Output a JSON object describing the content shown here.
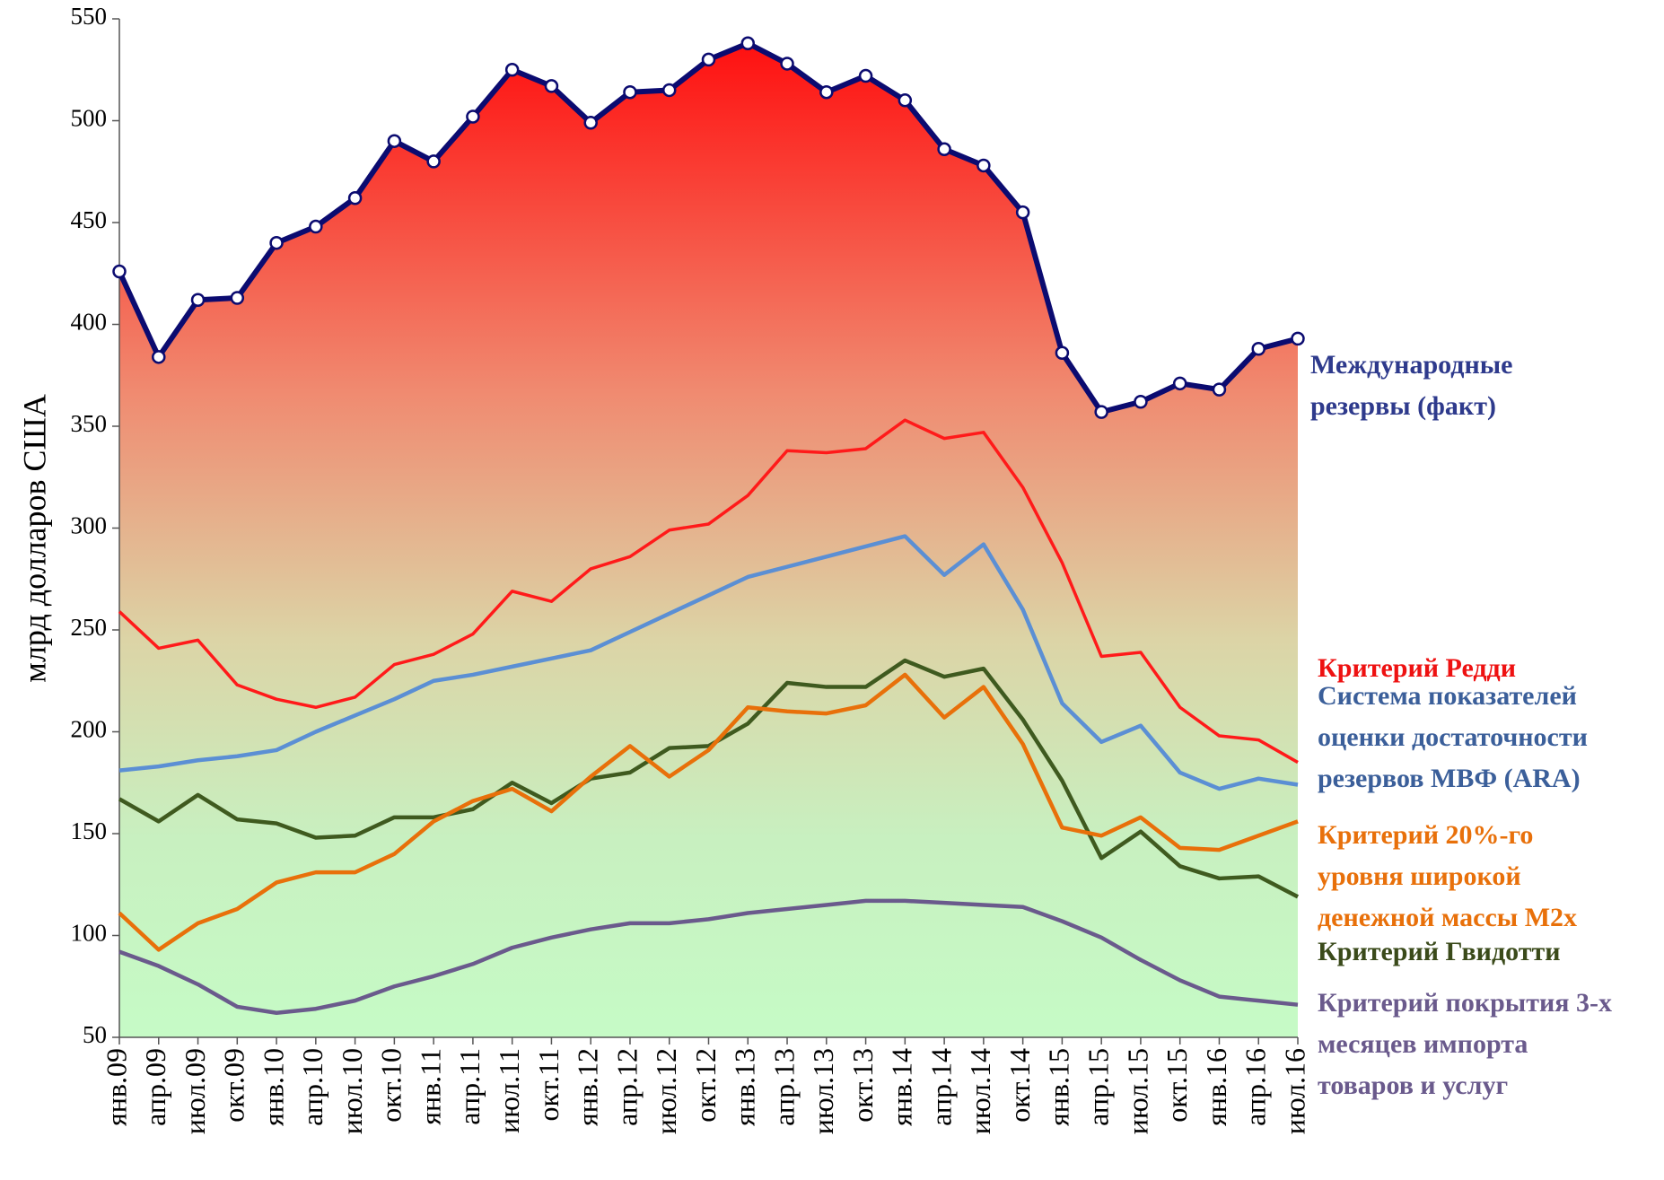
{
  "chart_data": {
    "type": "line",
    "ylabel": "млрд долларов США",
    "categories": [
      "янв.09",
      "апр.09",
      "июл.09",
      "окт.09",
      "янв.10",
      "апр.10",
      "июл.10",
      "окт.10",
      "янв.11",
      "апр.11",
      "июл.11",
      "окт.11",
      "янв.12",
      "апр.12",
      "июл.12",
      "окт.12",
      "янв.13",
      "апр.13",
      "июл.13",
      "окт.13",
      "янв.14",
      "апр.14",
      "июл.14",
      "окт.14",
      "янв.15",
      "апр.15",
      "июл.15",
      "окт.15",
      "янв.16",
      "апр.16",
      "июл.16"
    ],
    "ylim": [
      50,
      550
    ],
    "yticks": [
      50,
      100,
      150,
      200,
      250,
      300,
      350,
      400,
      450,
      500,
      550
    ],
    "series": [
      {
        "name": "Международные\nрезервы (факт)",
        "color": "#0b0b70",
        "label_color": "#2e3a8c",
        "values": [
          426,
          384,
          412,
          413,
          440,
          448,
          462,
          490,
          480,
          502,
          525,
          517,
          499,
          514,
          515,
          530,
          538,
          528,
          514,
          522,
          510,
          486,
          478,
          455,
          386,
          357,
          362,
          371,
          368,
          388,
          393
        ]
      },
      {
        "name": "Критерий Редди",
        "color": "#ff1a1a",
        "label_color": "#ee1111",
        "values": [
          259,
          241,
          245,
          223,
          216,
          212,
          217,
          233,
          238,
          248,
          269,
          264,
          280,
          286,
          299,
          302,
          316,
          338,
          337,
          339,
          353,
          344,
          347,
          320,
          283,
          237,
          239,
          212,
          198,
          196,
          185
        ]
      },
      {
        "name": "Система показателей\nоценки достаточности\nрезервов МВФ (ARA)",
        "color": "#5b8fd4",
        "label_color": "#3b5f9a",
        "values": [
          181,
          183,
          186,
          188,
          191,
          200,
          208,
          216,
          225,
          228,
          232,
          236,
          240,
          249,
          258,
          267,
          276,
          281,
          286,
          291,
          296,
          277,
          292,
          260,
          214,
          195,
          203,
          180,
          172,
          177,
          174
        ]
      },
      {
        "name": "Критерий 20%-го\nуровня широкой\nденежной массы M2x",
        "color": "#e8700a",
        "label_color": "#e8700a",
        "values": [
          111,
          93,
          106,
          113,
          126,
          131,
          131,
          140,
          156,
          166,
          172,
          161,
          178,
          193,
          178,
          191,
          212,
          210,
          209,
          213,
          228,
          207,
          222,
          194,
          153,
          149,
          158,
          143,
          142,
          149,
          156
        ]
      },
      {
        "name": "Критерий Гвидотти",
        "color": "#3f5a1f",
        "label_color": "#3a4a1a",
        "values": [
          167,
          156,
          169,
          157,
          155,
          148,
          149,
          158,
          158,
          162,
          175,
          165,
          177,
          180,
          192,
          193,
          204,
          224,
          222,
          222,
          235,
          227,
          231,
          206,
          176,
          138,
          151,
          134,
          128,
          129,
          119
        ]
      },
      {
        "name": "Критерий покрытия 3-х\nмесяцев импорта\nтоваров и услуг",
        "color": "#6a5a8c",
        "label_color": "#6a5a8c",
        "values": [
          92,
          85,
          76,
          65,
          62,
          64,
          68,
          75,
          80,
          86,
          94,
          99,
          103,
          106,
          106,
          108,
          111,
          113,
          115,
          117,
          117,
          116,
          115,
          114,
          107,
          99,
          88,
          78,
          70,
          68,
          66
        ]
      }
    ]
  }
}
